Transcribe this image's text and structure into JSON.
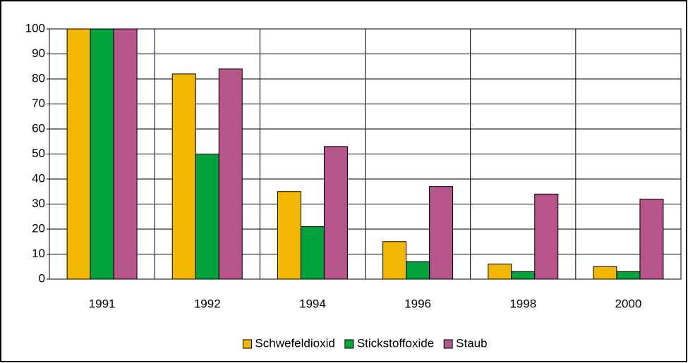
{
  "chart_data": {
    "type": "bar",
    "categories": [
      "1991",
      "1992",
      "1994",
      "1996",
      "1998",
      "2000"
    ],
    "series": [
      {
        "name": "Schwefeldioxid",
        "color": "#f2b700",
        "values": [
          100,
          82,
          35,
          15,
          6,
          5
        ]
      },
      {
        "name": "Stickstoffoxide",
        "color": "#00a23c",
        "values": [
          100,
          50,
          21,
          7,
          3,
          3
        ]
      },
      {
        "name": "Staub",
        "color": "#b5558a",
        "values": [
          100,
          84,
          53,
          37,
          34,
          32
        ]
      }
    ],
    "ylim": [
      0,
      100
    ],
    "yticks": [
      0,
      10,
      20,
      30,
      40,
      50,
      60,
      70,
      80,
      90,
      100
    ],
    "grid": true,
    "legend": "bottom"
  }
}
